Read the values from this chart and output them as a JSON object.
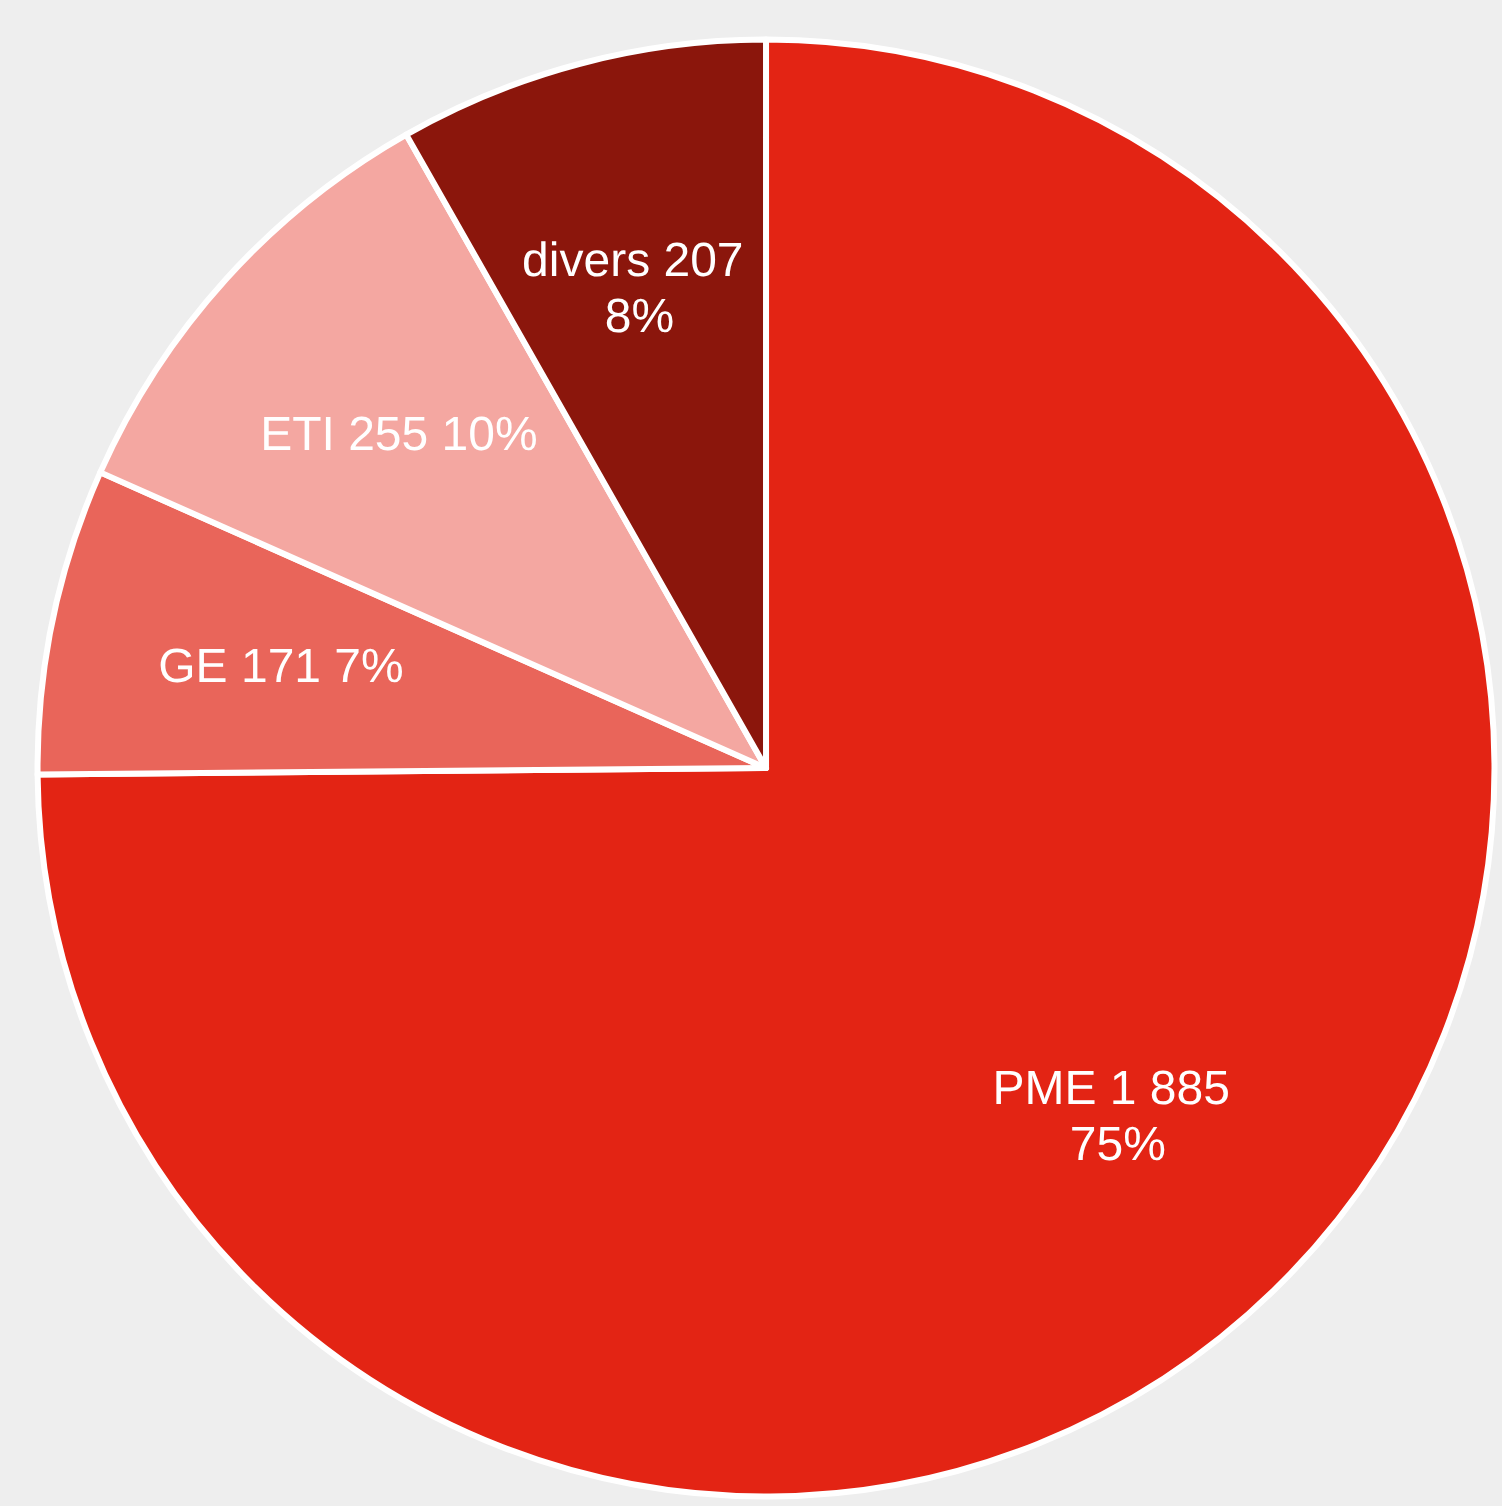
{
  "chart_data": {
    "type": "pie",
    "categories": [
      "PME",
      "GE",
      "ETI",
      "divers"
    ],
    "values": [
      1885,
      171,
      255,
      207
    ],
    "value_labels": [
      "1 885 75%",
      "171 7%",
      "255 10%",
      "207 8%"
    ],
    "colors": [
      "#e32414",
      "#e9655a",
      "#f4a7a1",
      "#8b160c"
    ],
    "legend": false
  }
}
